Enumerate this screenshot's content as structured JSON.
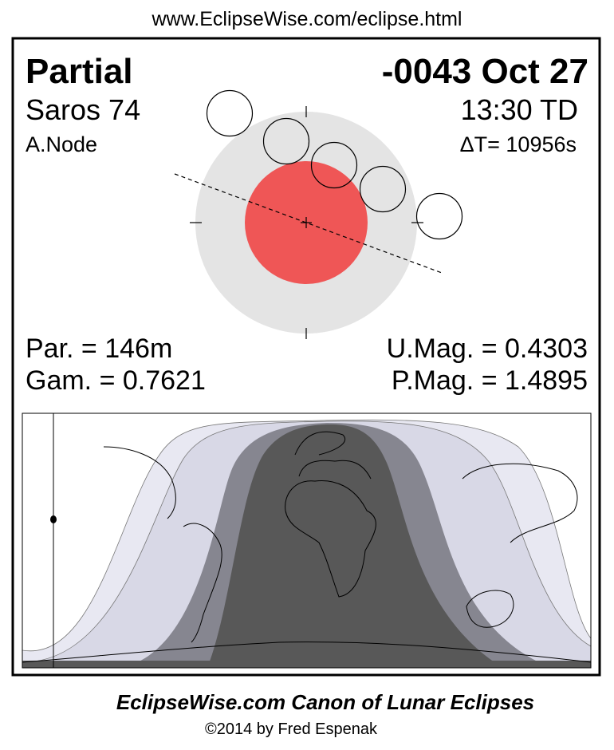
{
  "header": {
    "url": "www.EclipseWise.com/eclipse.html"
  },
  "eclipse": {
    "type": "Partial",
    "date": "-0043 Oct 27",
    "saros": "Saros  74",
    "time": "13:30 TD",
    "node": "A.Node",
    "delta_t": "ΔT=  10956s",
    "duration": "Par. = 146m",
    "gamma": "Gam. = 0.7621",
    "umag": "U.Mag. = 0.4303",
    "pmag": "P.Mag. = 1.4895"
  },
  "colors": {
    "penumbra": "#e4e4e4",
    "umbra": "#ef5656",
    "map_umbral_total": "#585858",
    "map_umbral": "#868690",
    "map_penumbral_inner": "#d8d8e6",
    "map_penumbral_outer": "#e8e8f2"
  },
  "footer": {
    "title": "EclipseWise.com Canon of Lunar Eclipses",
    "copyright": "©2014 by Fred Espenak"
  }
}
